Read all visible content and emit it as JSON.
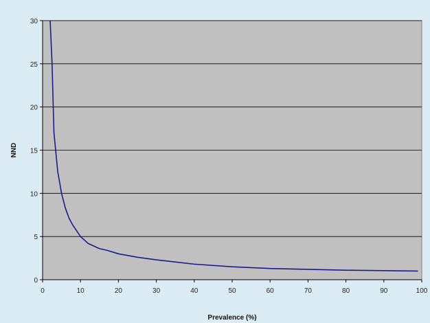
{
  "chart_data": {
    "type": "line",
    "title": "",
    "xlabel": "Prevalence (%)",
    "ylabel": "NND",
    "xlim": [
      0,
      100
    ],
    "ylim": [
      0,
      30
    ],
    "x_ticks": [
      0,
      10,
      20,
      30,
      40,
      50,
      60,
      70,
      80,
      90,
      100
    ],
    "y_ticks": [
      0,
      5,
      10,
      15,
      20,
      25,
      30
    ],
    "grid": {
      "horizontal": true,
      "vertical": false
    },
    "legend": "none",
    "colors": {
      "plot_background": "#c0c0c0",
      "chart_background": "#dcecf4",
      "gridline": "#000000",
      "series": "#1a1a8c"
    },
    "series": [
      {
        "values_x": [
          2,
          2.5,
          3,
          4,
          5,
          6,
          7,
          8,
          10,
          12,
          15,
          17,
          20,
          25,
          30,
          40,
          50,
          60,
          70,
          80,
          90,
          99
        ],
        "values_y": [
          30,
          25,
          17,
          12.5,
          10,
          8.3,
          7.1,
          6.3,
          5,
          4.2,
          3.6,
          3.4,
          3.0,
          2.6,
          2.3,
          1.8,
          1.5,
          1.3,
          1.2,
          1.1,
          1.05,
          1.0
        ]
      }
    ]
  }
}
